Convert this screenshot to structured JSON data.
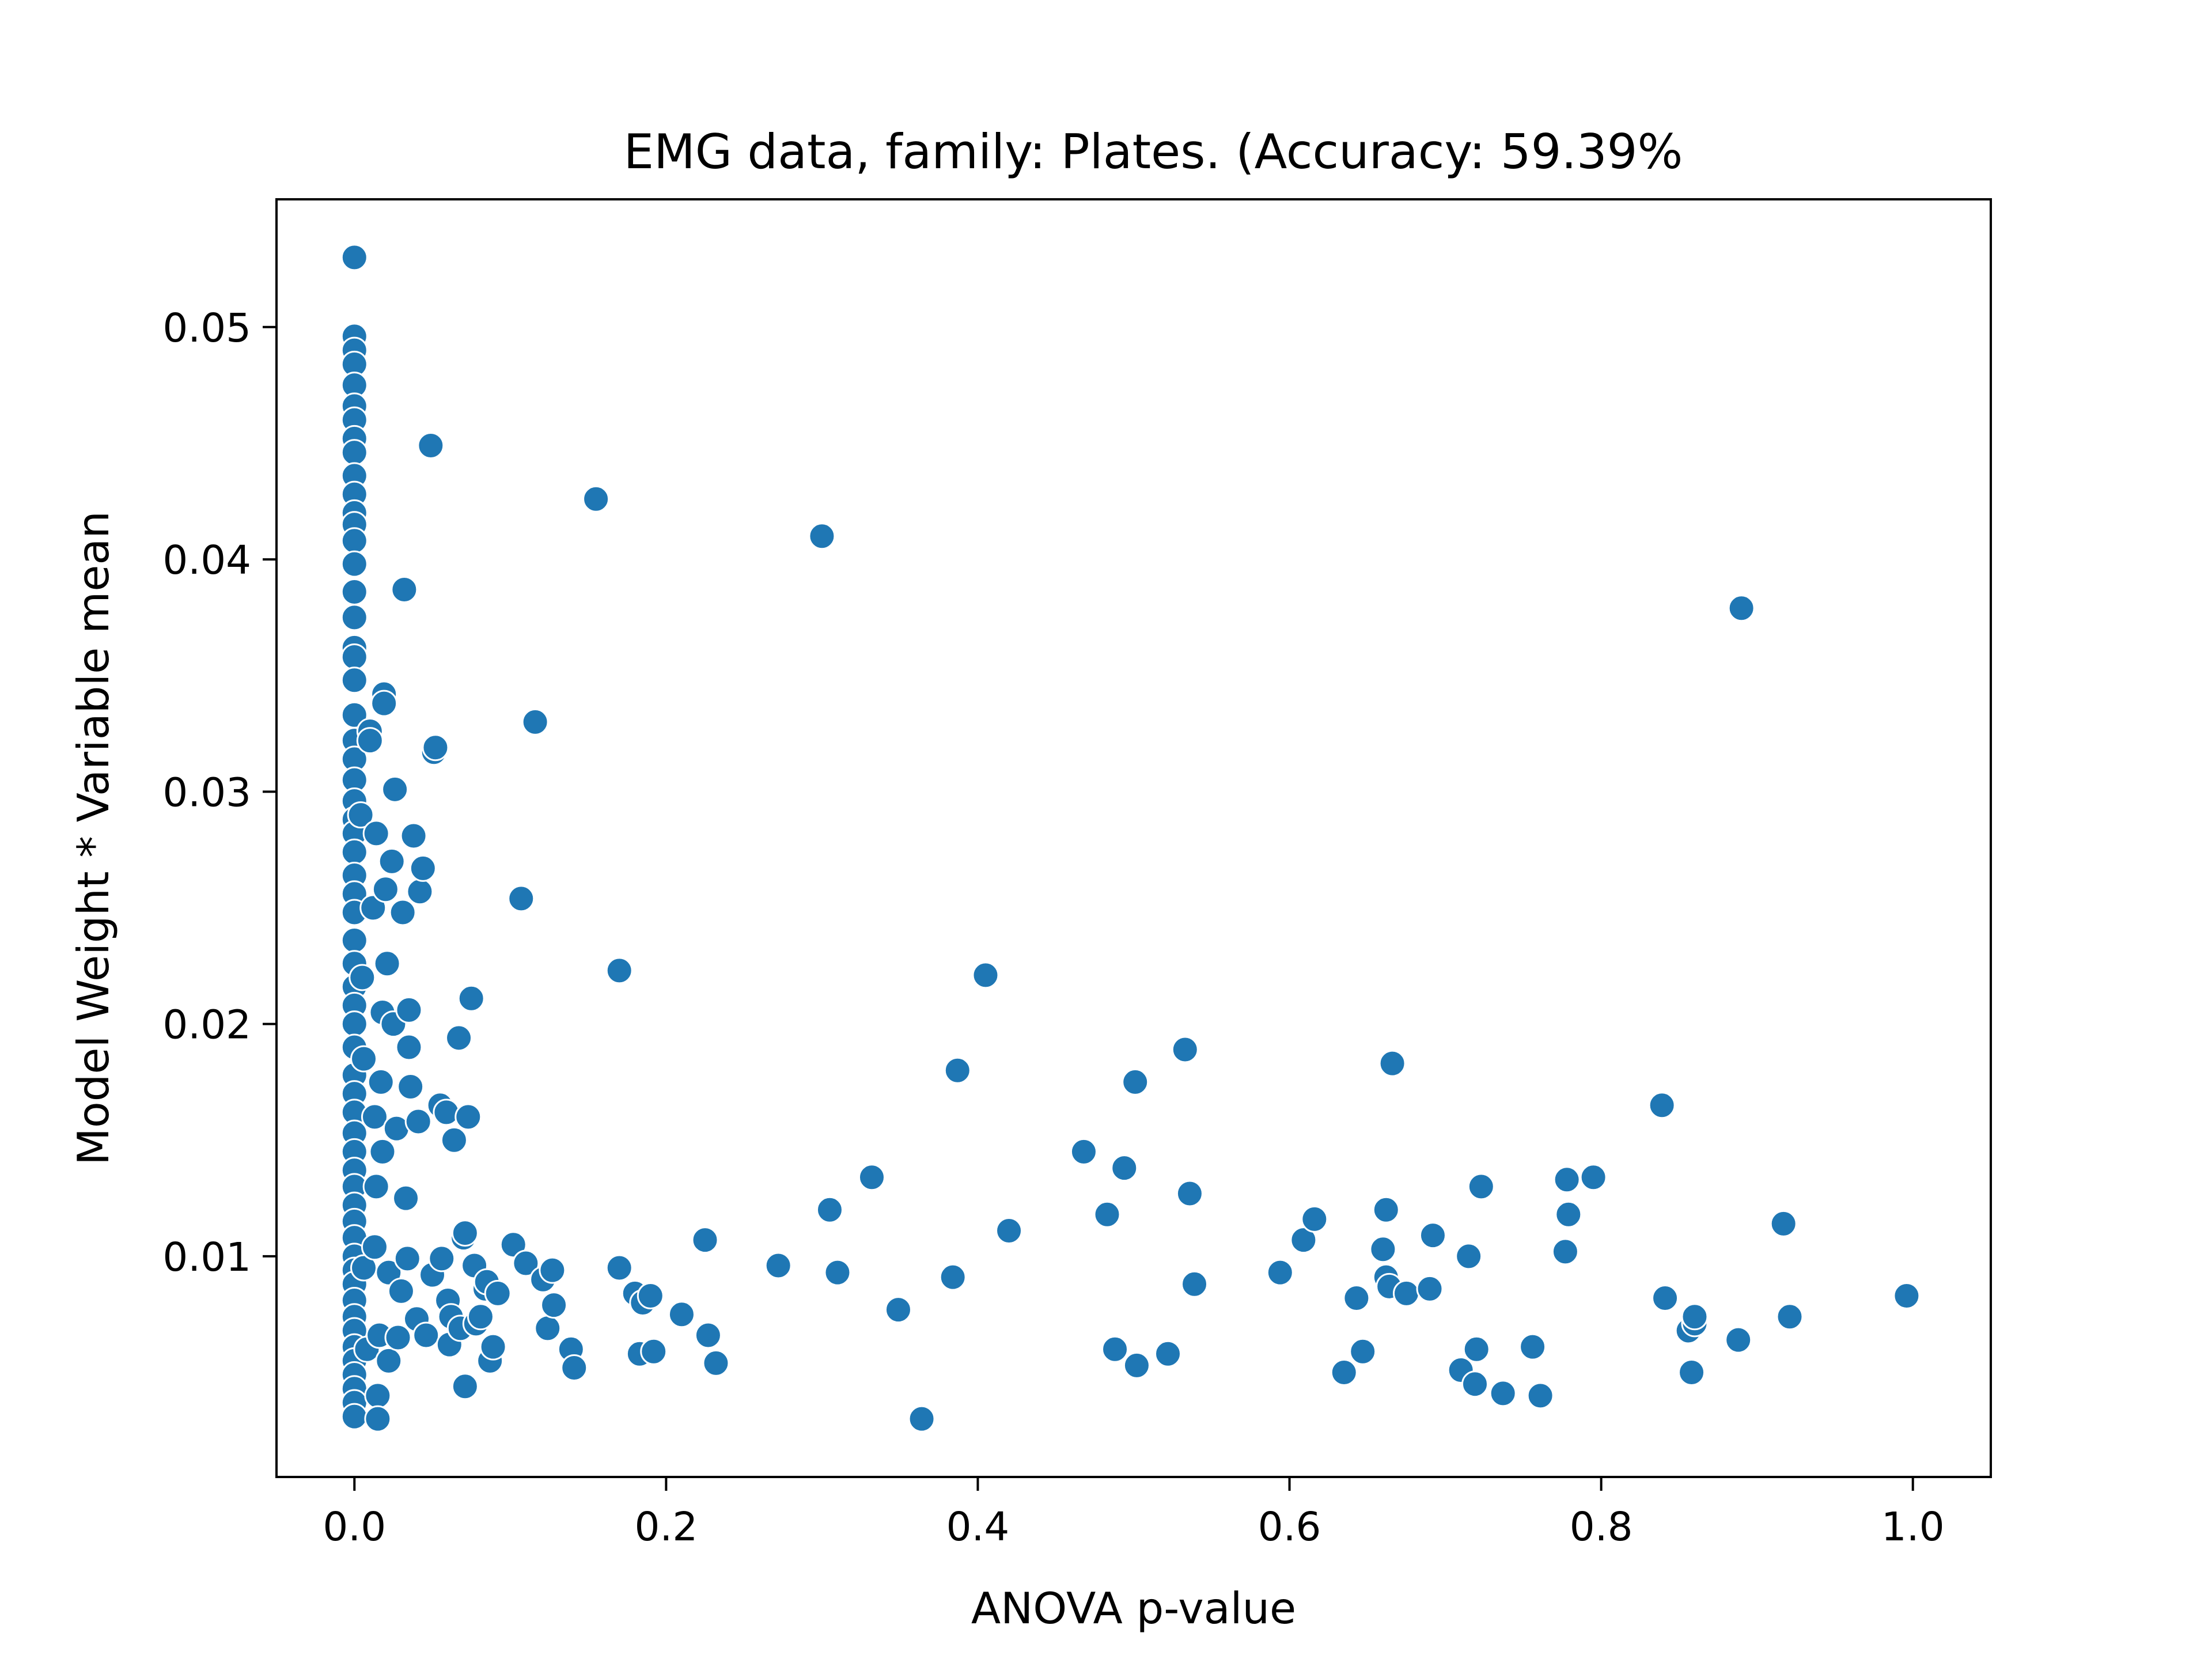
{
  "chart_data": {
    "type": "scatter",
    "title": "EMG data, family: Plates. (Accuracy: 59.39%",
    "xlabel": "ANOVA p-value",
    "ylabel": "Model Weight * Variable mean",
    "xlim": [
      -0.05,
      1.05
    ],
    "ylim": [
      0.0005,
      0.0555
    ],
    "xticks": [
      {
        "value": 0.0,
        "label": "0.0"
      },
      {
        "value": 0.2,
        "label": "0.2"
      },
      {
        "value": 0.4,
        "label": "0.4"
      },
      {
        "value": 0.6,
        "label": "0.6"
      },
      {
        "value": 0.8,
        "label": "0.8"
      },
      {
        "value": 1.0,
        "label": "1.0"
      }
    ],
    "yticks": [
      {
        "value": 0.01,
        "label": "0.01"
      },
      {
        "value": 0.02,
        "label": "0.02"
      },
      {
        "value": 0.03,
        "label": "0.03"
      },
      {
        "value": 0.04,
        "label": "0.04"
      },
      {
        "value": 0.05,
        "label": "0.05"
      }
    ],
    "grid": false,
    "legend": "none",
    "series": [
      {
        "color": "#1f77b4",
        "marker_edge": "#ffffff",
        "points": [
          [
            0.0,
            0.053
          ],
          [
            0.0,
            0.0496
          ],
          [
            0.0,
            0.049
          ],
          [
            0.0,
            0.0484
          ],
          [
            0.0,
            0.0475
          ],
          [
            0.0,
            0.0466
          ],
          [
            0.0,
            0.046
          ],
          [
            0.0,
            0.0452
          ],
          [
            0.0,
            0.0446
          ],
          [
            0.0,
            0.0436
          ],
          [
            0.0,
            0.0428
          ],
          [
            0.0,
            0.042
          ],
          [
            0.0,
            0.0415
          ],
          [
            0.0,
            0.0408
          ],
          [
            0.0,
            0.0398
          ],
          [
            0.0,
            0.0386
          ],
          [
            0.0,
            0.0375
          ],
          [
            0.0,
            0.0362
          ],
          [
            0.0,
            0.0358
          ],
          [
            0.0,
            0.0348
          ],
          [
            0.0,
            0.0333
          ],
          [
            0.0,
            0.0322
          ],
          [
            0.0,
            0.0314
          ],
          [
            0.0,
            0.0305
          ],
          [
            0.0,
            0.0296
          ],
          [
            0.0,
            0.0288
          ],
          [
            0.0,
            0.0282
          ],
          [
            0.0,
            0.0274
          ],
          [
            0.0,
            0.0264
          ],
          [
            0.0,
            0.0256
          ],
          [
            0.0,
            0.0248
          ],
          [
            0.0,
            0.0236
          ],
          [
            0.0,
            0.0226
          ],
          [
            0.0,
            0.0216
          ],
          [
            0.0,
            0.0208
          ],
          [
            0.0,
            0.02
          ],
          [
            0.0,
            0.019
          ],
          [
            0.0,
            0.0178
          ],
          [
            0.0,
            0.017
          ],
          [
            0.0,
            0.0162
          ],
          [
            0.0,
            0.0153
          ],
          [
            0.0,
            0.0145
          ],
          [
            0.0,
            0.0137
          ],
          [
            0.0,
            0.013
          ],
          [
            0.0,
            0.0122
          ],
          [
            0.0,
            0.0115
          ],
          [
            0.0,
            0.0108
          ],
          [
            0.0,
            0.01
          ],
          [
            0.0,
            0.0094
          ],
          [
            0.0,
            0.0088
          ],
          [
            0.0,
            0.0081
          ],
          [
            0.0,
            0.0074
          ],
          [
            0.0,
            0.0068
          ],
          [
            0.0,
            0.0061
          ],
          [
            0.0,
            0.0055
          ],
          [
            0.0,
            0.0049
          ],
          [
            0.0,
            0.0043
          ],
          [
            0.0,
            0.0037
          ],
          [
            0.0,
            0.0031
          ],
          [
            0.004,
            0.029
          ],
          [
            0.005,
            0.022
          ],
          [
            0.006,
            0.0185
          ],
          [
            0.006,
            0.0095
          ],
          [
            0.008,
            0.006
          ],
          [
            0.01,
            0.0326
          ],
          [
            0.01,
            0.0322
          ],
          [
            0.012,
            0.025
          ],
          [
            0.013,
            0.016
          ],
          [
            0.013,
            0.0104
          ],
          [
            0.014,
            0.0282
          ],
          [
            0.014,
            0.013
          ],
          [
            0.015,
            0.004
          ],
          [
            0.015,
            0.003
          ],
          [
            0.016,
            0.0066
          ],
          [
            0.017,
            0.0175
          ],
          [
            0.018,
            0.0145
          ],
          [
            0.018,
            0.0205
          ],
          [
            0.019,
            0.0342
          ],
          [
            0.019,
            0.0338
          ],
          [
            0.02,
            0.0258
          ],
          [
            0.021,
            0.0226
          ],
          [
            0.022,
            0.0093
          ],
          [
            0.022,
            0.0055
          ],
          [
            0.024,
            0.027
          ],
          [
            0.025,
            0.02
          ],
          [
            0.026,
            0.0301
          ],
          [
            0.027,
            0.0155
          ],
          [
            0.028,
            0.0065
          ],
          [
            0.03,
            0.0085
          ],
          [
            0.031,
            0.0248
          ],
          [
            0.032,
            0.0387
          ],
          [
            0.033,
            0.0125
          ],
          [
            0.034,
            0.0099
          ],
          [
            0.035,
            0.019
          ],
          [
            0.035,
            0.0206
          ],
          [
            0.036,
            0.0173
          ],
          [
            0.038,
            0.0281
          ],
          [
            0.04,
            0.0073
          ],
          [
            0.041,
            0.0158
          ],
          [
            0.042,
            0.0257
          ],
          [
            0.044,
            0.0267
          ],
          [
            0.046,
            0.0066
          ],
          [
            0.049,
            0.0449
          ],
          [
            0.05,
            0.0092
          ],
          [
            0.051,
            0.0317
          ],
          [
            0.052,
            0.0319
          ],
          [
            0.055,
            0.0165
          ],
          [
            0.056,
            0.0099
          ],
          [
            0.059,
            0.0162
          ],
          [
            0.06,
            0.0081
          ],
          [
            0.061,
            0.0062
          ],
          [
            0.062,
            0.0074
          ],
          [
            0.064,
            0.015
          ],
          [
            0.067,
            0.0194
          ],
          [
            0.068,
            0.0069
          ],
          [
            0.07,
            0.0108
          ],
          [
            0.071,
            0.011
          ],
          [
            0.071,
            0.0044
          ],
          [
            0.073,
            0.016
          ],
          [
            0.075,
            0.0211
          ],
          [
            0.077,
            0.0096
          ],
          [
            0.078,
            0.0071
          ],
          [
            0.081,
            0.0074
          ],
          [
            0.084,
            0.0086
          ],
          [
            0.085,
            0.0089
          ],
          [
            0.087,
            0.0055
          ],
          [
            0.089,
            0.0061
          ],
          [
            0.092,
            0.0084
          ],
          [
            0.102,
            0.0105
          ],
          [
            0.107,
            0.0254
          ],
          [
            0.11,
            0.0097
          ],
          [
            0.116,
            0.033
          ],
          [
            0.121,
            0.009
          ],
          [
            0.124,
            0.0069
          ],
          [
            0.127,
            0.0094
          ],
          [
            0.128,
            0.0079
          ],
          [
            0.139,
            0.006
          ],
          [
            0.141,
            0.0052
          ],
          [
            0.155,
            0.0426
          ],
          [
            0.17,
            0.0095
          ],
          [
            0.17,
            0.0223
          ],
          [
            0.18,
            0.0084
          ],
          [
            0.183,
            0.0058
          ],
          [
            0.185,
            0.008
          ],
          [
            0.19,
            0.0083
          ],
          [
            0.192,
            0.0059
          ],
          [
            0.21,
            0.0075
          ],
          [
            0.225,
            0.0107
          ],
          [
            0.227,
            0.0066
          ],
          [
            0.232,
            0.0054
          ],
          [
            0.272,
            0.0096
          ],
          [
            0.3,
            0.041
          ],
          [
            0.305,
            0.012
          ],
          [
            0.31,
            0.0093
          ],
          [
            0.332,
            0.0134
          ],
          [
            0.349,
            0.0077
          ],
          [
            0.364,
            0.003
          ],
          [
            0.384,
            0.0091
          ],
          [
            0.387,
            0.018
          ],
          [
            0.405,
            0.0221
          ],
          [
            0.42,
            0.0111
          ],
          [
            0.468,
            0.0145
          ],
          [
            0.483,
            0.0118
          ],
          [
            0.488,
            0.006
          ],
          [
            0.494,
            0.0138
          ],
          [
            0.501,
            0.0175
          ],
          [
            0.502,
            0.0053
          ],
          [
            0.522,
            0.0058
          ],
          [
            0.533,
            0.0189
          ],
          [
            0.536,
            0.0127
          ],
          [
            0.539,
            0.0088
          ],
          [
            0.594,
            0.0093
          ],
          [
            0.609,
            0.0107
          ],
          [
            0.616,
            0.0116
          ],
          [
            0.635,
            0.005
          ],
          [
            0.643,
            0.0082
          ],
          [
            0.647,
            0.0059
          ],
          [
            0.66,
            0.0103
          ],
          [
            0.662,
            0.012
          ],
          [
            0.662,
            0.0091
          ],
          [
            0.664,
            0.0087
          ],
          [
            0.666,
            0.0183
          ],
          [
            0.675,
            0.0084
          ],
          [
            0.69,
            0.0086
          ],
          [
            0.692,
            0.0109
          ],
          [
            0.71,
            0.0051
          ],
          [
            0.715,
            0.01
          ],
          [
            0.719,
            0.0045
          ],
          [
            0.72,
            0.006
          ],
          [
            0.723,
            0.013
          ],
          [
            0.737,
            0.0041
          ],
          [
            0.756,
            0.0061
          ],
          [
            0.761,
            0.004
          ],
          [
            0.777,
            0.0102
          ],
          [
            0.778,
            0.0133
          ],
          [
            0.779,
            0.0118
          ],
          [
            0.795,
            0.0134
          ],
          [
            0.839,
            0.0165
          ],
          [
            0.841,
            0.0082
          ],
          [
            0.856,
            0.0068
          ],
          [
            0.858,
            0.005
          ],
          [
            0.86,
            0.0071
          ],
          [
            0.86,
            0.0074
          ],
          [
            0.888,
            0.0064
          ],
          [
            0.89,
            0.0379
          ],
          [
            0.917,
            0.0114
          ],
          [
            0.921,
            0.0074
          ],
          [
            0.996,
            0.0083
          ]
        ]
      }
    ]
  }
}
